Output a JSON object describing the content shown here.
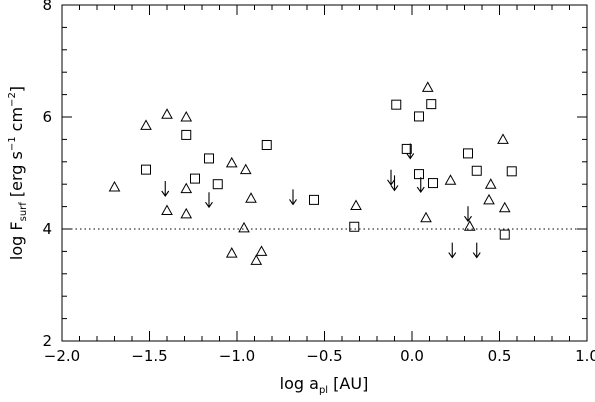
{
  "chart_data": {
    "type": "scatter",
    "title": "",
    "xlabel": {
      "prefix": "log a",
      "subscript": "pl",
      "suffix": " [AU]"
    },
    "ylabel": {
      "prefix": "log F",
      "subscript": "surf",
      "middle1": " [erg s",
      "sup1": "−1",
      "middle2": " cm",
      "sup2": "−2",
      "suffix": "]"
    },
    "xlim": [
      -2.0,
      1.0
    ],
    "ylim": [
      2,
      8
    ],
    "xticks": [
      -2.0,
      -1.5,
      -1.0,
      -0.5,
      0.0,
      0.5,
      1.0
    ],
    "xtick_labels": [
      "−2.0",
      "−1.5",
      "−1.0",
      "−0.5",
      "0.0",
      "0.5",
      "1.0"
    ],
    "yticks": [
      2,
      4,
      6,
      8
    ],
    "ytick_labels": [
      "2",
      "4",
      "6",
      "8"
    ],
    "reference_line": {
      "y": 4.0,
      "style": "dotted"
    },
    "series": [
      {
        "marker": "triangle",
        "points": [
          {
            "x": -1.7,
            "y": 4.75
          },
          {
            "x": -1.52,
            "y": 5.85
          },
          {
            "x": -1.4,
            "y": 6.05
          },
          {
            "x": -1.4,
            "y": 4.33
          },
          {
            "x": -1.29,
            "y": 6.0
          },
          {
            "x": -1.29,
            "y": 4.72
          },
          {
            "x": -1.29,
            "y": 4.27
          },
          {
            "x": -1.03,
            "y": 5.18
          },
          {
            "x": -0.95,
            "y": 5.06
          },
          {
            "x": -0.92,
            "y": 4.55
          },
          {
            "x": -1.03,
            "y": 3.57
          },
          {
            "x": -0.96,
            "y": 4.02
          },
          {
            "x": -0.89,
            "y": 3.44
          },
          {
            "x": -0.86,
            "y": 3.6
          },
          {
            "x": -0.32,
            "y": 4.42
          },
          {
            "x": 0.09,
            "y": 6.53
          },
          {
            "x": 0.08,
            "y": 4.2
          },
          {
            "x": 0.22,
            "y": 4.87
          },
          {
            "x": 0.33,
            "y": 4.05
          },
          {
            "x": 0.44,
            "y": 4.52
          },
          {
            "x": 0.45,
            "y": 4.8
          },
          {
            "x": 0.52,
            "y": 5.6
          },
          {
            "x": 0.53,
            "y": 4.38
          }
        ]
      },
      {
        "marker": "square",
        "points": [
          {
            "x": -1.52,
            "y": 5.06
          },
          {
            "x": -1.29,
            "y": 5.68
          },
          {
            "x": -1.24,
            "y": 4.9
          },
          {
            "x": -1.16,
            "y": 5.26
          },
          {
            "x": -1.11,
            "y": 4.8
          },
          {
            "x": -0.83,
            "y": 5.5
          },
          {
            "x": -0.56,
            "y": 4.52
          },
          {
            "x": -0.33,
            "y": 4.04
          },
          {
            "x": -0.09,
            "y": 6.22
          },
          {
            "x": -0.03,
            "y": 5.43
          },
          {
            "x": 0.04,
            "y": 6.01
          },
          {
            "x": 0.04,
            "y": 4.98
          },
          {
            "x": 0.11,
            "y": 6.23
          },
          {
            "x": 0.12,
            "y": 4.82
          },
          {
            "x": 0.32,
            "y": 5.35
          },
          {
            "x": 0.37,
            "y": 5.04
          },
          {
            "x": 0.53,
            "y": 3.9
          },
          {
            "x": 0.57,
            "y": 5.03
          }
        ]
      },
      {
        "marker": "upper-limit-arrow",
        "points": [
          {
            "x": -1.41,
            "y": 4.75
          },
          {
            "x": -1.16,
            "y": 4.55
          },
          {
            "x": -0.68,
            "y": 4.6
          },
          {
            "x": -0.12,
            "y": 4.95
          },
          {
            "x": -0.1,
            "y": 4.85
          },
          {
            "x": -0.01,
            "y": 5.42
          },
          {
            "x": 0.05,
            "y": 4.82
          },
          {
            "x": 0.32,
            "y": 4.3
          },
          {
            "x": 0.23,
            "y": 3.65
          },
          {
            "x": 0.37,
            "y": 3.65
          }
        ]
      }
    ]
  }
}
